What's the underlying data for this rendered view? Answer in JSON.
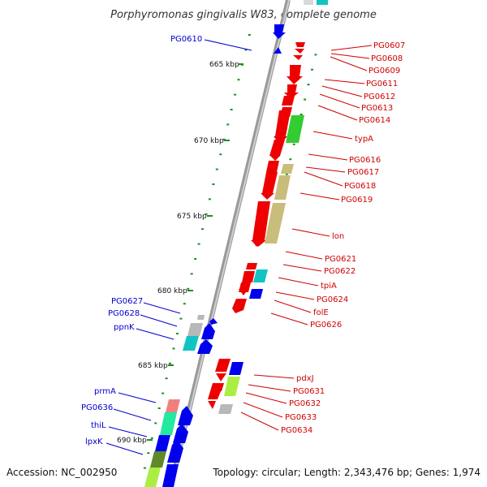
{
  "title": "Porphyromonas gingivalis W83, complete genome",
  "accession": "Accession: NC_002950",
  "topology": "Topology: circular; Length: 2,343,476 bp; Genes: 1,974",
  "kbp_labels": [
    "665 kbp",
    "670 kbp",
    "675 kbp",
    "680 kbp",
    "685 kbp",
    "690 kbp"
  ],
  "right_labels": [
    "PG0607",
    "PG0608",
    "PG0609",
    "PG0611",
    "PG0612",
    "PG0613",
    "PG0614",
    "typA",
    "PG0616",
    "PG0617",
    "PG0618",
    "PG0619",
    "lon",
    "PG0621",
    "PG0622",
    "tpiA",
    "PG0624",
    "folE",
    "PG0626",
    "pdxJ",
    "PG0631",
    "PG0632",
    "PG0633",
    "PG0634"
  ],
  "left_labels": [
    "PG0610",
    "PG0627",
    "PG0628",
    "ppnK",
    "prmA",
    "PG0636",
    "thiL",
    "lpxK"
  ],
  "colors": {
    "label_right": "#d00000",
    "label_left": "#0000cc",
    "gene_red": "#ee0000",
    "gene_blue": "#0000ee",
    "gene_green": "#33cc33",
    "gene_khaki": "#c8bd7a",
    "gene_cyan": "#11c4c4",
    "gene_grey": "#b8b8b8",
    "gene_pink": "#f08080",
    "gene_lime": "#aaee44",
    "gene_olive": "#5e8a2a",
    "gene_mint": "#22e8a0",
    "backbone": "#909090",
    "tick": "#228b22"
  }
}
